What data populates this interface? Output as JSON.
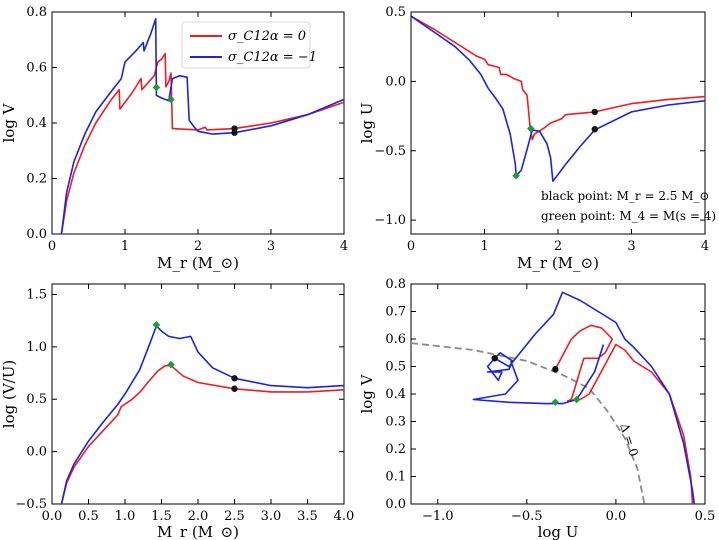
{
  "figure": {
    "colors": {
      "red": "#ee1c25",
      "blue": "#1c23e0",
      "black": "#111111",
      "green": "#1f9a3a",
      "dash": "#8a8a8a"
    }
  },
  "chart_data": [
    {
      "id": "p1",
      "type": "line",
      "title": "",
      "xlabel": "M_r (M_⊙)",
      "ylabel": "log V",
      "xlim": [
        0,
        4
      ],
      "ylim": [
        0,
        0.8
      ],
      "xticks": [
        "0",
        "1",
        "2",
        "3",
        "4"
      ],
      "yticks": [
        "0.0",
        "0.2",
        "0.4",
        "0.6",
        "0.8"
      ],
      "legend": {
        "position": "top-center",
        "entries": [
          {
            "label": "σ_C12α = 0",
            "color": "red"
          },
          {
            "label": "σ_C12α = −1",
            "color": "blue"
          }
        ]
      },
      "series": [
        {
          "name": "σ_C12α = 0",
          "color": "red",
          "points": [
            [
              0.13,
              0
            ],
            [
              0.2,
              0.12
            ],
            [
              0.3,
              0.22
            ],
            [
              0.45,
              0.32
            ],
            [
              0.6,
              0.4
            ],
            [
              0.8,
              0.48
            ],
            [
              0.92,
              0.52
            ],
            [
              0.93,
              0.45
            ],
            [
              1.1,
              0.51
            ],
            [
              1.22,
              0.56
            ],
            [
              1.23,
              0.52
            ],
            [
              1.4,
              0.57
            ],
            [
              1.45,
              0.62
            ],
            [
              1.5,
              0.63
            ],
            [
              1.55,
              0.65
            ],
            [
              1.56,
              0.53
            ],
            [
              1.6,
              0.55
            ],
            [
              1.63,
              0.58
            ],
            [
              1.65,
              0.38
            ],
            [
              2.0,
              0.375
            ],
            [
              2.1,
              0.385
            ],
            [
              2.12,
              0.375
            ],
            [
              2.5,
              0.38
            ],
            [
              3.0,
              0.4
            ],
            [
              3.5,
              0.43
            ],
            [
              4.0,
              0.475
            ]
          ]
        },
        {
          "name": "σ_C12α = −1",
          "color": "blue",
          "points": [
            [
              0.13,
              0
            ],
            [
              0.2,
              0.15
            ],
            [
              0.3,
              0.26
            ],
            [
              0.45,
              0.36
            ],
            [
              0.6,
              0.44
            ],
            [
              0.8,
              0.51
            ],
            [
              0.95,
              0.56
            ],
            [
              1.0,
              0.62
            ],
            [
              1.15,
              0.66
            ],
            [
              1.25,
              0.69
            ],
            [
              1.26,
              0.66
            ],
            [
              1.35,
              0.72
            ],
            [
              1.42,
              0.775
            ],
            [
              1.43,
              0.5
            ],
            [
              1.5,
              0.49
            ],
            [
              1.6,
              0.48
            ],
            [
              1.65,
              0.56
            ],
            [
              1.75,
              0.57
            ],
            [
              1.85,
              0.565
            ],
            [
              1.88,
              0.41
            ],
            [
              1.95,
              0.385
            ],
            [
              2.0,
              0.37
            ],
            [
              2.2,
              0.36
            ],
            [
              2.5,
              0.365
            ],
            [
              3.0,
              0.39
            ],
            [
              3.5,
              0.43
            ],
            [
              4.0,
              0.485
            ]
          ]
        }
      ],
      "markers": [
        {
          "type": "diamond",
          "color": "green",
          "x": 1.43,
          "y": 0.528
        },
        {
          "type": "diamond",
          "color": "green",
          "x": 1.63,
          "y": 0.485
        },
        {
          "type": "circle",
          "color": "black",
          "x": 2.5,
          "y": 0.38
        },
        {
          "type": "circle",
          "color": "black",
          "x": 2.5,
          "y": 0.365
        }
      ]
    },
    {
      "id": "p2",
      "type": "line",
      "title": "",
      "xlabel": "M_r (M_⊙)",
      "ylabel": "log U",
      "xlim": [
        0,
        4
      ],
      "ylim": [
        -1.1,
        0.5
      ],
      "xticks": [
        "0",
        "1",
        "2",
        "3",
        "4"
      ],
      "yticks": [
        "−1.0",
        "−0.5",
        "0.0",
        "0.5"
      ],
      "annotations": [
        "black point: M_r = 2.5 M_⊙",
        "green point: M_4 = M(s = 4)"
      ],
      "series": [
        {
          "name": "σ_C12α = 0",
          "color": "red",
          "points": [
            [
              0,
              0.47
            ],
            [
              0.3,
              0.38
            ],
            [
              0.6,
              0.28
            ],
            [
              0.9,
              0.18
            ],
            [
              1.0,
              0.16
            ],
            [
              1.05,
              0.12
            ],
            [
              1.2,
              0.1
            ],
            [
              1.22,
              0.05
            ],
            [
              1.3,
              0.05
            ],
            [
              1.4,
              0.02
            ],
            [
              1.5,
              0.0
            ],
            [
              1.52,
              -0.06
            ],
            [
              1.58,
              -0.1
            ],
            [
              1.62,
              -0.33
            ],
            [
              1.65,
              -0.42
            ],
            [
              1.68,
              -0.38
            ],
            [
              1.8,
              -0.34
            ],
            [
              1.9,
              -0.3
            ],
            [
              2.05,
              -0.27
            ],
            [
              2.1,
              -0.24
            ],
            [
              2.5,
              -0.22
            ],
            [
              3.0,
              -0.16
            ],
            [
              3.5,
              -0.13
            ],
            [
              4.0,
              -0.11
            ]
          ]
        },
        {
          "name": "σ_C12α = −1",
          "color": "blue",
          "points": [
            [
              0,
              0.47
            ],
            [
              0.3,
              0.36
            ],
            [
              0.6,
              0.25
            ],
            [
              0.8,
              0.15
            ],
            [
              0.95,
              0.05
            ],
            [
              1.05,
              -0.05
            ],
            [
              1.15,
              -0.12
            ],
            [
              1.25,
              -0.2
            ],
            [
              1.35,
              -0.38
            ],
            [
              1.42,
              -0.6
            ],
            [
              1.43,
              -0.68
            ],
            [
              1.5,
              -0.64
            ],
            [
              1.6,
              -0.45
            ],
            [
              1.65,
              -0.35
            ],
            [
              1.75,
              -0.36
            ],
            [
              1.85,
              -0.45
            ],
            [
              1.9,
              -0.55
            ],
            [
              1.93,
              -0.72
            ],
            [
              2.1,
              -0.6
            ],
            [
              2.3,
              -0.47
            ],
            [
              2.5,
              -0.35
            ],
            [
              3.0,
              -0.22
            ],
            [
              3.5,
              -0.17
            ],
            [
              4.0,
              -0.14
            ]
          ]
        }
      ],
      "markers": [
        {
          "type": "diamond",
          "color": "green",
          "x": 1.43,
          "y": -0.68
        },
        {
          "type": "diamond",
          "color": "green",
          "x": 1.63,
          "y": -0.34
        },
        {
          "type": "circle",
          "color": "black",
          "x": 2.5,
          "y": -0.22
        },
        {
          "type": "circle",
          "color": "black",
          "x": 2.5,
          "y": -0.345
        }
      ]
    },
    {
      "id": "p3",
      "type": "line",
      "title": "",
      "xlabel": "M_r (M_⊙)",
      "ylabel": "log (V/U)",
      "xlim": [
        0,
        4
      ],
      "ylim": [
        -0.5,
        1.6
      ],
      "xticks": [
        "0.0",
        "0.5",
        "1.0",
        "1.5",
        "2.0",
        "2.5",
        "3.0",
        "3.5",
        "4.0"
      ],
      "yticks": [
        "−0.5",
        "0.0",
        "0.5",
        "1.0",
        "1.5"
      ],
      "series": [
        {
          "name": "σ_C12α = 0",
          "color": "red",
          "points": [
            [
              0.13,
              -0.5
            ],
            [
              0.2,
              -0.3
            ],
            [
              0.3,
              -0.15
            ],
            [
              0.5,
              0.05
            ],
            [
              0.7,
              0.2
            ],
            [
              0.9,
              0.35
            ],
            [
              0.95,
              0.43
            ],
            [
              1.1,
              0.5
            ],
            [
              1.22,
              0.58
            ],
            [
              1.3,
              0.65
            ],
            [
              1.45,
              0.77
            ],
            [
              1.55,
              0.82
            ],
            [
              1.63,
              0.82
            ],
            [
              1.8,
              0.72
            ],
            [
              2.0,
              0.66
            ],
            [
              2.5,
              0.6
            ],
            [
              3.0,
              0.57
            ],
            [
              3.5,
              0.57
            ],
            [
              4.0,
              0.59
            ]
          ]
        },
        {
          "name": "σ_C12α = −1",
          "color": "blue",
          "points": [
            [
              0.13,
              -0.5
            ],
            [
              0.2,
              -0.28
            ],
            [
              0.3,
              -0.12
            ],
            [
              0.5,
              0.1
            ],
            [
              0.7,
              0.28
            ],
            [
              0.9,
              0.45
            ],
            [
              1.0,
              0.55
            ],
            [
              1.2,
              0.78
            ],
            [
              1.35,
              1.05
            ],
            [
              1.43,
              1.2
            ],
            [
              1.5,
              1.15
            ],
            [
              1.6,
              1.1
            ],
            [
              1.75,
              1.08
            ],
            [
              1.9,
              1.1
            ],
            [
              2.0,
              0.95
            ],
            [
              2.2,
              0.8
            ],
            [
              2.5,
              0.7
            ],
            [
              3.0,
              0.63
            ],
            [
              3.5,
              0.61
            ],
            [
              4.0,
              0.63
            ]
          ]
        }
      ],
      "markers": [
        {
          "type": "diamond",
          "color": "green",
          "x": 1.43,
          "y": 1.21
        },
        {
          "type": "diamond",
          "color": "green",
          "x": 1.63,
          "y": 0.83
        },
        {
          "type": "circle",
          "color": "black",
          "x": 2.5,
          "y": 0.6
        },
        {
          "type": "circle",
          "color": "black",
          "x": 2.5,
          "y": 0.7
        }
      ]
    },
    {
      "id": "p4",
      "type": "line",
      "title": "",
      "xlabel": "log U",
      "ylabel": "log V",
      "xlim": [
        -1.15,
        0.5
      ],
      "ylim": [
        0,
        0.8
      ],
      "xticks": [
        "−1.0",
        "−0.5",
        "0.0",
        "0.5"
      ],
      "yticks": [
        "0.0",
        "0.1",
        "0.2",
        "0.3",
        "0.4",
        "0.5",
        "0.6",
        "0.7",
        "0.8"
      ],
      "annotations": [
        "Δ = 0"
      ],
      "dashed_curve": {
        "color": "dash",
        "points": [
          [
            -1.15,
            0.585
          ],
          [
            -0.8,
            0.56
          ],
          [
            -0.5,
            0.52
          ],
          [
            -0.3,
            0.47
          ],
          [
            -0.15,
            0.42
          ],
          [
            -0.05,
            0.34
          ],
          [
            0.05,
            0.24
          ],
          [
            0.12,
            0.13
          ],
          [
            0.16,
            0
          ]
        ]
      },
      "series": [
        {
          "name": "σ_C12α = 0",
          "color": "red",
          "points": [
            [
              -0.34,
              0.49
            ],
            [
              -0.25,
              0.6
            ],
            [
              -0.2,
              0.63
            ],
            [
              -0.14,
              0.65
            ],
            [
              -0.08,
              0.64
            ],
            [
              -0.02,
              0.6
            ],
            [
              -0.06,
              0.55
            ],
            [
              -0.1,
              0.53
            ],
            [
              -0.18,
              0.53
            ],
            [
              -0.25,
              0.38
            ],
            [
              -0.27,
              0.375
            ],
            [
              -0.2,
              0.38
            ],
            [
              -0.15,
              0.4
            ],
            [
              0.0,
              0.58
            ],
            [
              0.05,
              0.56
            ],
            [
              0.1,
              0.52
            ],
            [
              0.2,
              0.48
            ],
            [
              0.3,
              0.4
            ],
            [
              0.38,
              0.25
            ],
            [
              0.42,
              0.1
            ],
            [
              0.43,
              0
            ]
          ]
        },
        {
          "name": "σ_C12α = −1",
          "color": "blue",
          "points": [
            [
              -0.68,
              0.53
            ],
            [
              -0.65,
              0.55
            ],
            [
              -0.58,
              0.52
            ],
            [
              -0.6,
              0.49
            ],
            [
              -0.72,
              0.48
            ],
            [
              -0.64,
              0.48
            ],
            [
              -0.66,
              0.45
            ],
            [
              -0.72,
              0.5
            ],
            [
              -0.68,
              0.53
            ],
            [
              -0.6,
              0.5
            ],
            [
              -0.45,
              0.62
            ],
            [
              -0.35,
              0.69
            ],
            [
              -0.3,
              0.77
            ],
            [
              -0.2,
              0.74
            ],
            [
              -0.1,
              0.7
            ],
            [
              0.0,
              0.66
            ],
            [
              0.05,
              0.6
            ],
            [
              0.1,
              0.57
            ],
            [
              0.2,
              0.5
            ],
            [
              0.3,
              0.4
            ],
            [
              0.38,
              0.22
            ],
            [
              0.43,
              0.05
            ],
            [
              0.44,
              0
            ]
          ],
          "branch": [
            [
              -0.59,
              0.52
            ],
            [
              -0.55,
              0.45
            ],
            [
              -0.62,
              0.4
            ],
            [
              -0.8,
              0.38
            ],
            [
              -0.6,
              0.37
            ],
            [
              -0.4,
              0.365
            ],
            [
              -0.3,
              0.365
            ],
            [
              -0.22,
              0.38
            ],
            [
              -0.12,
              0.48
            ],
            [
              -0.08,
              0.56
            ],
            [
              -0.07,
              0.58
            ]
          ]
        }
      ],
      "markers": [
        {
          "type": "diamond",
          "color": "green",
          "x": -0.34,
          "y": 0.37
        },
        {
          "type": "diamond",
          "color": "green",
          "x": -0.22,
          "y": 0.38
        },
        {
          "type": "circle",
          "color": "black",
          "x": -0.68,
          "y": 0.53
        },
        {
          "type": "circle",
          "color": "black",
          "x": -0.34,
          "y": 0.49
        }
      ]
    }
  ]
}
